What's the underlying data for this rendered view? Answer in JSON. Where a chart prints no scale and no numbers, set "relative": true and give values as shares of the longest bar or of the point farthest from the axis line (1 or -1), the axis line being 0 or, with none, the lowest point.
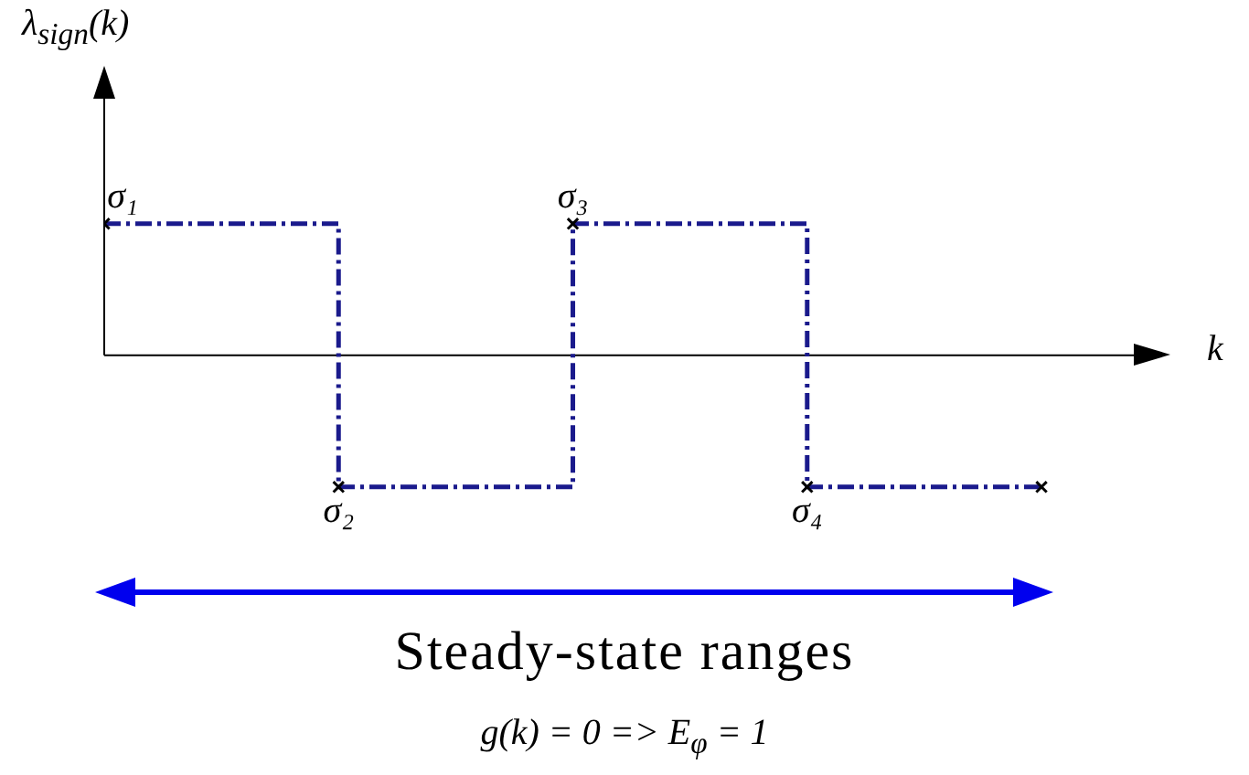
{
  "chart_data": {
    "type": "step",
    "relative": true,
    "ylabel": "λ$_{sign}$(k)",
    "xlabel": "k",
    "categories": [
      null,
      null,
      null,
      null,
      null
    ],
    "series": [
      {
        "color": "#1a1a8c",
        "values": [
          1,
          -1,
          1,
          -1,
          -1
        ]
      }
    ],
    "marker": "cross",
    "line_style": "dashed",
    "legend": false,
    "annotations": [
      "σ₁",
      "σ₂",
      "σ₃",
      "σ₄",
      "Steady-state ranges",
      "g(k) = 0 => E$_{φ}$ = 1"
    ]
  }
}
